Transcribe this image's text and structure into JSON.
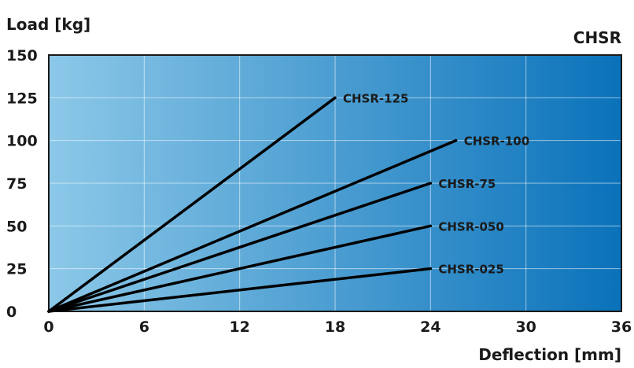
{
  "chart_data": {
    "type": "line",
    "title": "CHSR",
    "xlabel": "Deflection [mm]",
    "ylabel": "Load [kg]",
    "xlim": [
      0,
      36
    ],
    "ylim": [
      0,
      150
    ],
    "xticks": [
      "0",
      "6",
      "12",
      "18",
      "24",
      "30",
      "36"
    ],
    "yticks": [
      "0",
      "25",
      "50",
      "75",
      "100",
      "125",
      "150"
    ],
    "grid": true,
    "background_gradient": [
      "#8cc8e8",
      "#0a72ba"
    ],
    "line_color": "#000000",
    "series": [
      {
        "name": "CHSR-125",
        "x": [
          0,
          18
        ],
        "y": [
          0,
          125
        ]
      },
      {
        "name": "CHSR-100",
        "x": [
          0,
          25.6
        ],
        "y": [
          0,
          100
        ]
      },
      {
        "name": "CHSR-75",
        "x": [
          0,
          24
        ],
        "y": [
          0,
          75
        ]
      },
      {
        "name": "CHSR-050",
        "x": [
          0,
          24
        ],
        "y": [
          0,
          50
        ]
      },
      {
        "name": "CHSR-025",
        "x": [
          0,
          24
        ],
        "y": [
          0,
          25
        ]
      }
    ]
  }
}
